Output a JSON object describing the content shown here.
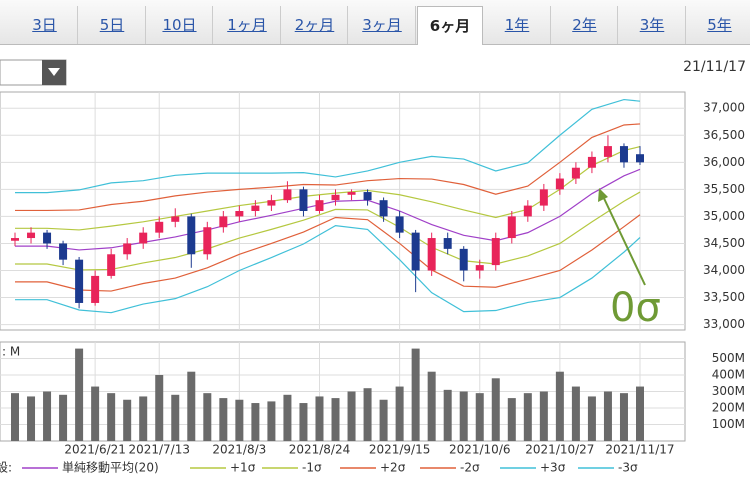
{
  "tabs": [
    "3日",
    "5日",
    "10日",
    "1ヶ月",
    "2ヶ月",
    "3ヶ月",
    "6ヶ月",
    "1年",
    "2年",
    "3年",
    "5年"
  ],
  "selected_tab": 6,
  "date": "21/11/17",
  "legend_prefix": "設:",
  "chart_data": [
    {
      "type": "candlestick",
      "open": [
        34550,
        34600,
        34700,
        34500,
        34200,
        33400,
        33900,
        34300,
        34500,
        34700,
        34900,
        35000,
        34300,
        34800,
        35000,
        35100,
        35200,
        35300,
        35500,
        35100,
        35300,
        35400,
        35450,
        35300,
        35000,
        34700,
        34000,
        34600,
        34400,
        34000,
        34100,
        34600,
        35000,
        35200,
        35500,
        35700,
        35900,
        36100,
        36300,
        36150
      ],
      "high": [
        34700,
        34800,
        34750,
        34550,
        34250,
        34000,
        34400,
        34600,
        34800,
        35000,
        35150,
        35050,
        34900,
        35100,
        35200,
        35300,
        35400,
        35650,
        35550,
        35400,
        35500,
        35500,
        35500,
        35350,
        35100,
        34750,
        34700,
        34700,
        34450,
        34200,
        34700,
        35100,
        35300,
        35600,
        35800,
        36000,
        36200,
        36500,
        36350,
        36300
      ],
      "low": [
        34450,
        34500,
        34400,
        34100,
        33300,
        33350,
        33850,
        34200,
        34400,
        34600,
        34800,
        34050,
        34200,
        34700,
        34900,
        35000,
        35100,
        35250,
        35000,
        35050,
        35200,
        35300,
        35200,
        34900,
        34600,
        33600,
        33900,
        34300,
        33800,
        33850,
        34000,
        34500,
        34900,
        35100,
        35400,
        35600,
        35800,
        36000,
        35900,
        35950
      ],
      "close": [
        34600,
        34700,
        34500,
        34200,
        33400,
        33900,
        34300,
        34500,
        34700,
        34900,
        35000,
        34300,
        34800,
        35000,
        35100,
        35200,
        35300,
        35500,
        35100,
        35300,
        35400,
        35450,
        35300,
        35000,
        34700,
        34000,
        34600,
        34400,
        34000,
        34100,
        34600,
        35000,
        35200,
        35500,
        35700,
        35900,
        36100,
        36300,
        36000,
        36000
      ],
      "up_color": "#e8245a",
      "down_color": "#1c3a8f",
      "series": [
        {
          "name": "単純移動平均(20)",
          "color": "#a040c8",
          "x": [
            0,
            2,
            4,
            6,
            8,
            10,
            12,
            14,
            16,
            18,
            20,
            22,
            24,
            26,
            28,
            30,
            32,
            34,
            36,
            38,
            39
          ],
          "values": [
            34450,
            34450,
            34380,
            34420,
            34520,
            34620,
            34750,
            34900,
            35020,
            35150,
            35280,
            35300,
            35100,
            34850,
            34650,
            34550,
            34700,
            35000,
            35420,
            35750,
            35870
          ]
        },
        {
          "name": "+1σ",
          "color": "#b5c840",
          "x": [
            0,
            2,
            4,
            6,
            8,
            10,
            12,
            14,
            16,
            18,
            20,
            22,
            24,
            26,
            28,
            30,
            32,
            34,
            36,
            38,
            39
          ],
          "values": [
            34780,
            34780,
            34750,
            34820,
            34900,
            35000,
            35100,
            35200,
            35280,
            35370,
            35430,
            35480,
            35400,
            35270,
            35120,
            34980,
            35130,
            35500,
            35940,
            36220,
            36290
          ]
        },
        {
          "name": "-1σ",
          "color": "#b5c840",
          "x": [
            0,
            2,
            4,
            6,
            8,
            10,
            12,
            14,
            16,
            18,
            20,
            22,
            24,
            26,
            28,
            30,
            32,
            34,
            36,
            38,
            39
          ],
          "values": [
            34120,
            34120,
            34010,
            34020,
            34140,
            34240,
            34400,
            34600,
            34760,
            34930,
            35130,
            35120,
            34800,
            34430,
            34180,
            34120,
            34270,
            34500,
            34900,
            35280,
            35450
          ]
        },
        {
          "name": "+2σ",
          "color": "#e0603a",
          "x": [
            0,
            2,
            4,
            6,
            8,
            10,
            12,
            14,
            16,
            18,
            20,
            22,
            24,
            26,
            28,
            30,
            32,
            34,
            36,
            38,
            39
          ],
          "values": [
            35110,
            35110,
            35120,
            35220,
            35280,
            35380,
            35450,
            35500,
            35540,
            35590,
            35580,
            35660,
            35700,
            35690,
            35590,
            35410,
            35560,
            36000,
            36460,
            36690,
            36710
          ]
        },
        {
          "name": "-2σ",
          "color": "#e0603a",
          "x": [
            0,
            2,
            4,
            6,
            8,
            10,
            12,
            14,
            16,
            18,
            20,
            22,
            24,
            26,
            28,
            30,
            32,
            34,
            36,
            38,
            39
          ],
          "values": [
            33790,
            33790,
            33640,
            33620,
            33760,
            33860,
            34050,
            34300,
            34500,
            34710,
            34980,
            34940,
            34500,
            34010,
            33710,
            33690,
            33840,
            34000,
            34380,
            34810,
            35030
          ]
        },
        {
          "name": "+3σ",
          "color": "#40c0d8",
          "x": [
            0,
            2,
            4,
            6,
            8,
            10,
            12,
            14,
            16,
            18,
            20,
            22,
            24,
            26,
            28,
            30,
            32,
            34,
            36,
            38,
            39
          ],
          "values": [
            35440,
            35440,
            35490,
            35620,
            35660,
            35760,
            35800,
            35800,
            35800,
            35810,
            35730,
            35840,
            36000,
            36110,
            36060,
            35840,
            35990,
            36500,
            36980,
            37160,
            37130
          ]
        },
        {
          "name": "-3σ",
          "color": "#40c0d8",
          "x": [
            0,
            2,
            4,
            6,
            8,
            10,
            12,
            14,
            16,
            18,
            20,
            22,
            24,
            26,
            28,
            30,
            32,
            34,
            36,
            38,
            39
          ],
          "values": [
            33460,
            33460,
            33270,
            33220,
            33380,
            33480,
            33700,
            34000,
            34240,
            34490,
            34830,
            34760,
            34200,
            33590,
            33240,
            33260,
            33410,
            33500,
            33860,
            34340,
            34610
          ]
        }
      ],
      "ylim": [
        32900,
        37300
      ],
      "yticks": [
        {
          "value": 33000,
          "label": "33,000"
        },
        {
          "value": 33500,
          "label": "33,500"
        },
        {
          "value": 34000,
          "label": "34,000"
        },
        {
          "value": 34500,
          "label": "34,500"
        },
        {
          "value": 35000,
          "label": "35,000"
        },
        {
          "value": 35500,
          "label": "35,500"
        },
        {
          "value": 36000,
          "label": "36,000"
        },
        {
          "value": 36500,
          "label": "36,500"
        },
        {
          "value": 37000,
          "label": "37,000"
        }
      ],
      "grid": true,
      "annotation": "0σ"
    },
    {
      "type": "bar",
      "label": ": M",
      "categories": [
        null,
        null,
        null,
        null,
        null,
        "2021/6/21",
        null,
        null,
        null,
        "2021/7/13",
        null,
        null,
        null,
        null,
        "2021/8/3",
        null,
        null,
        null,
        null,
        "2021/8/24",
        null,
        null,
        null,
        null,
        "2021/9/15",
        null,
        null,
        null,
        null,
        "2021/10/6",
        null,
        null,
        null,
        null,
        "2021/10/27",
        null,
        null,
        null,
        null,
        "2021/11/17"
      ],
      "values": [
        290,
        270,
        300,
        280,
        560,
        330,
        290,
        250,
        270,
        400,
        280,
        420,
        290,
        260,
        250,
        230,
        240,
        280,
        230,
        270,
        260,
        300,
        320,
        250,
        330,
        560,
        420,
        310,
        300,
        290,
        380,
        260,
        290,
        300,
        420,
        330,
        270,
        300,
        290,
        330
      ],
      "color": "#6a6a6a",
      "ylim": [
        0,
        600
      ],
      "yticks": [
        {
          "value": 100,
          "label": "100M"
        },
        {
          "value": 200,
          "label": "200M"
        },
        {
          "value": 300,
          "label": "300M"
        },
        {
          "value": 400,
          "label": "400M"
        },
        {
          "value": 500,
          "label": "500M"
        }
      ],
      "grid": true
    }
  ]
}
